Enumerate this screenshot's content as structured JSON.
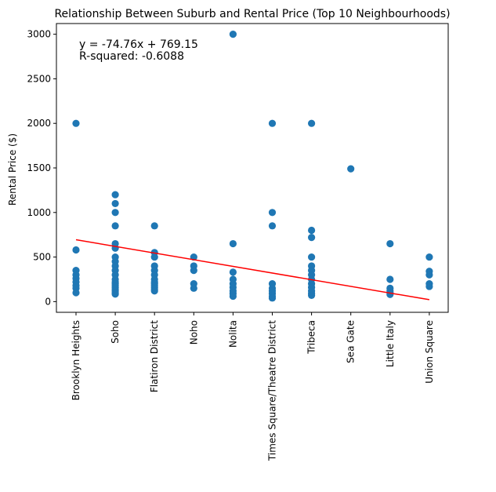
{
  "chart_data": {
    "type": "scatter",
    "title": "Relationship Between Suburb and Rental Price (Top 10 Neighbourhoods)",
    "xlabel": "",
    "ylabel": "Rental Price ($)",
    "categories": [
      "Brooklyn Heights",
      "Soho",
      "Flatiron District",
      "Noho",
      "Nolita",
      "Times Square/Theatre District",
      "Tribeca",
      "Sea Gate",
      "Little Italy",
      "Union Square"
    ],
    "ylim": [
      -120,
      3120
    ],
    "yticks": [
      0,
      500,
      1000,
      1500,
      2000,
      2500,
      3000
    ],
    "grid": false,
    "marker_color": "#1f77b4",
    "line_color": "#ff0000",
    "series": [
      {
        "values": [
          [
            2000,
            580,
            350,
            300,
            260,
            220,
            180,
            150,
            100
          ],
          [
            1200,
            1100,
            1000,
            850,
            650,
            600,
            500,
            450,
            400,
            350,
            300,
            250,
            220,
            200,
            180,
            160,
            140,
            120,
            100,
            85
          ],
          [
            850,
            550,
            500,
            400,
            350,
            300,
            250,
            220,
            200,
            180,
            160,
            140,
            120
          ],
          [
            500,
            400,
            350,
            200,
            150
          ],
          [
            3000,
            650,
            330,
            250,
            200,
            160,
            120,
            90,
            60
          ],
          [
            2000,
            1000,
            850,
            200,
            150,
            120,
            90,
            60,
            40
          ],
          [
            2000,
            800,
            720,
            500,
            400,
            350,
            300,
            250,
            200,
            160,
            120,
            90,
            70
          ],
          [
            1490
          ],
          [
            650,
            250,
            150,
            120,
            100,
            80
          ],
          [
            500,
            340,
            300,
            200,
            170
          ]
        ]
      }
    ],
    "regression": {
      "equation": "y = -74.76x + 769.15",
      "r_squared": "R-squared: -0.6088",
      "slope": -74.76,
      "intercept": 769.15
    }
  }
}
